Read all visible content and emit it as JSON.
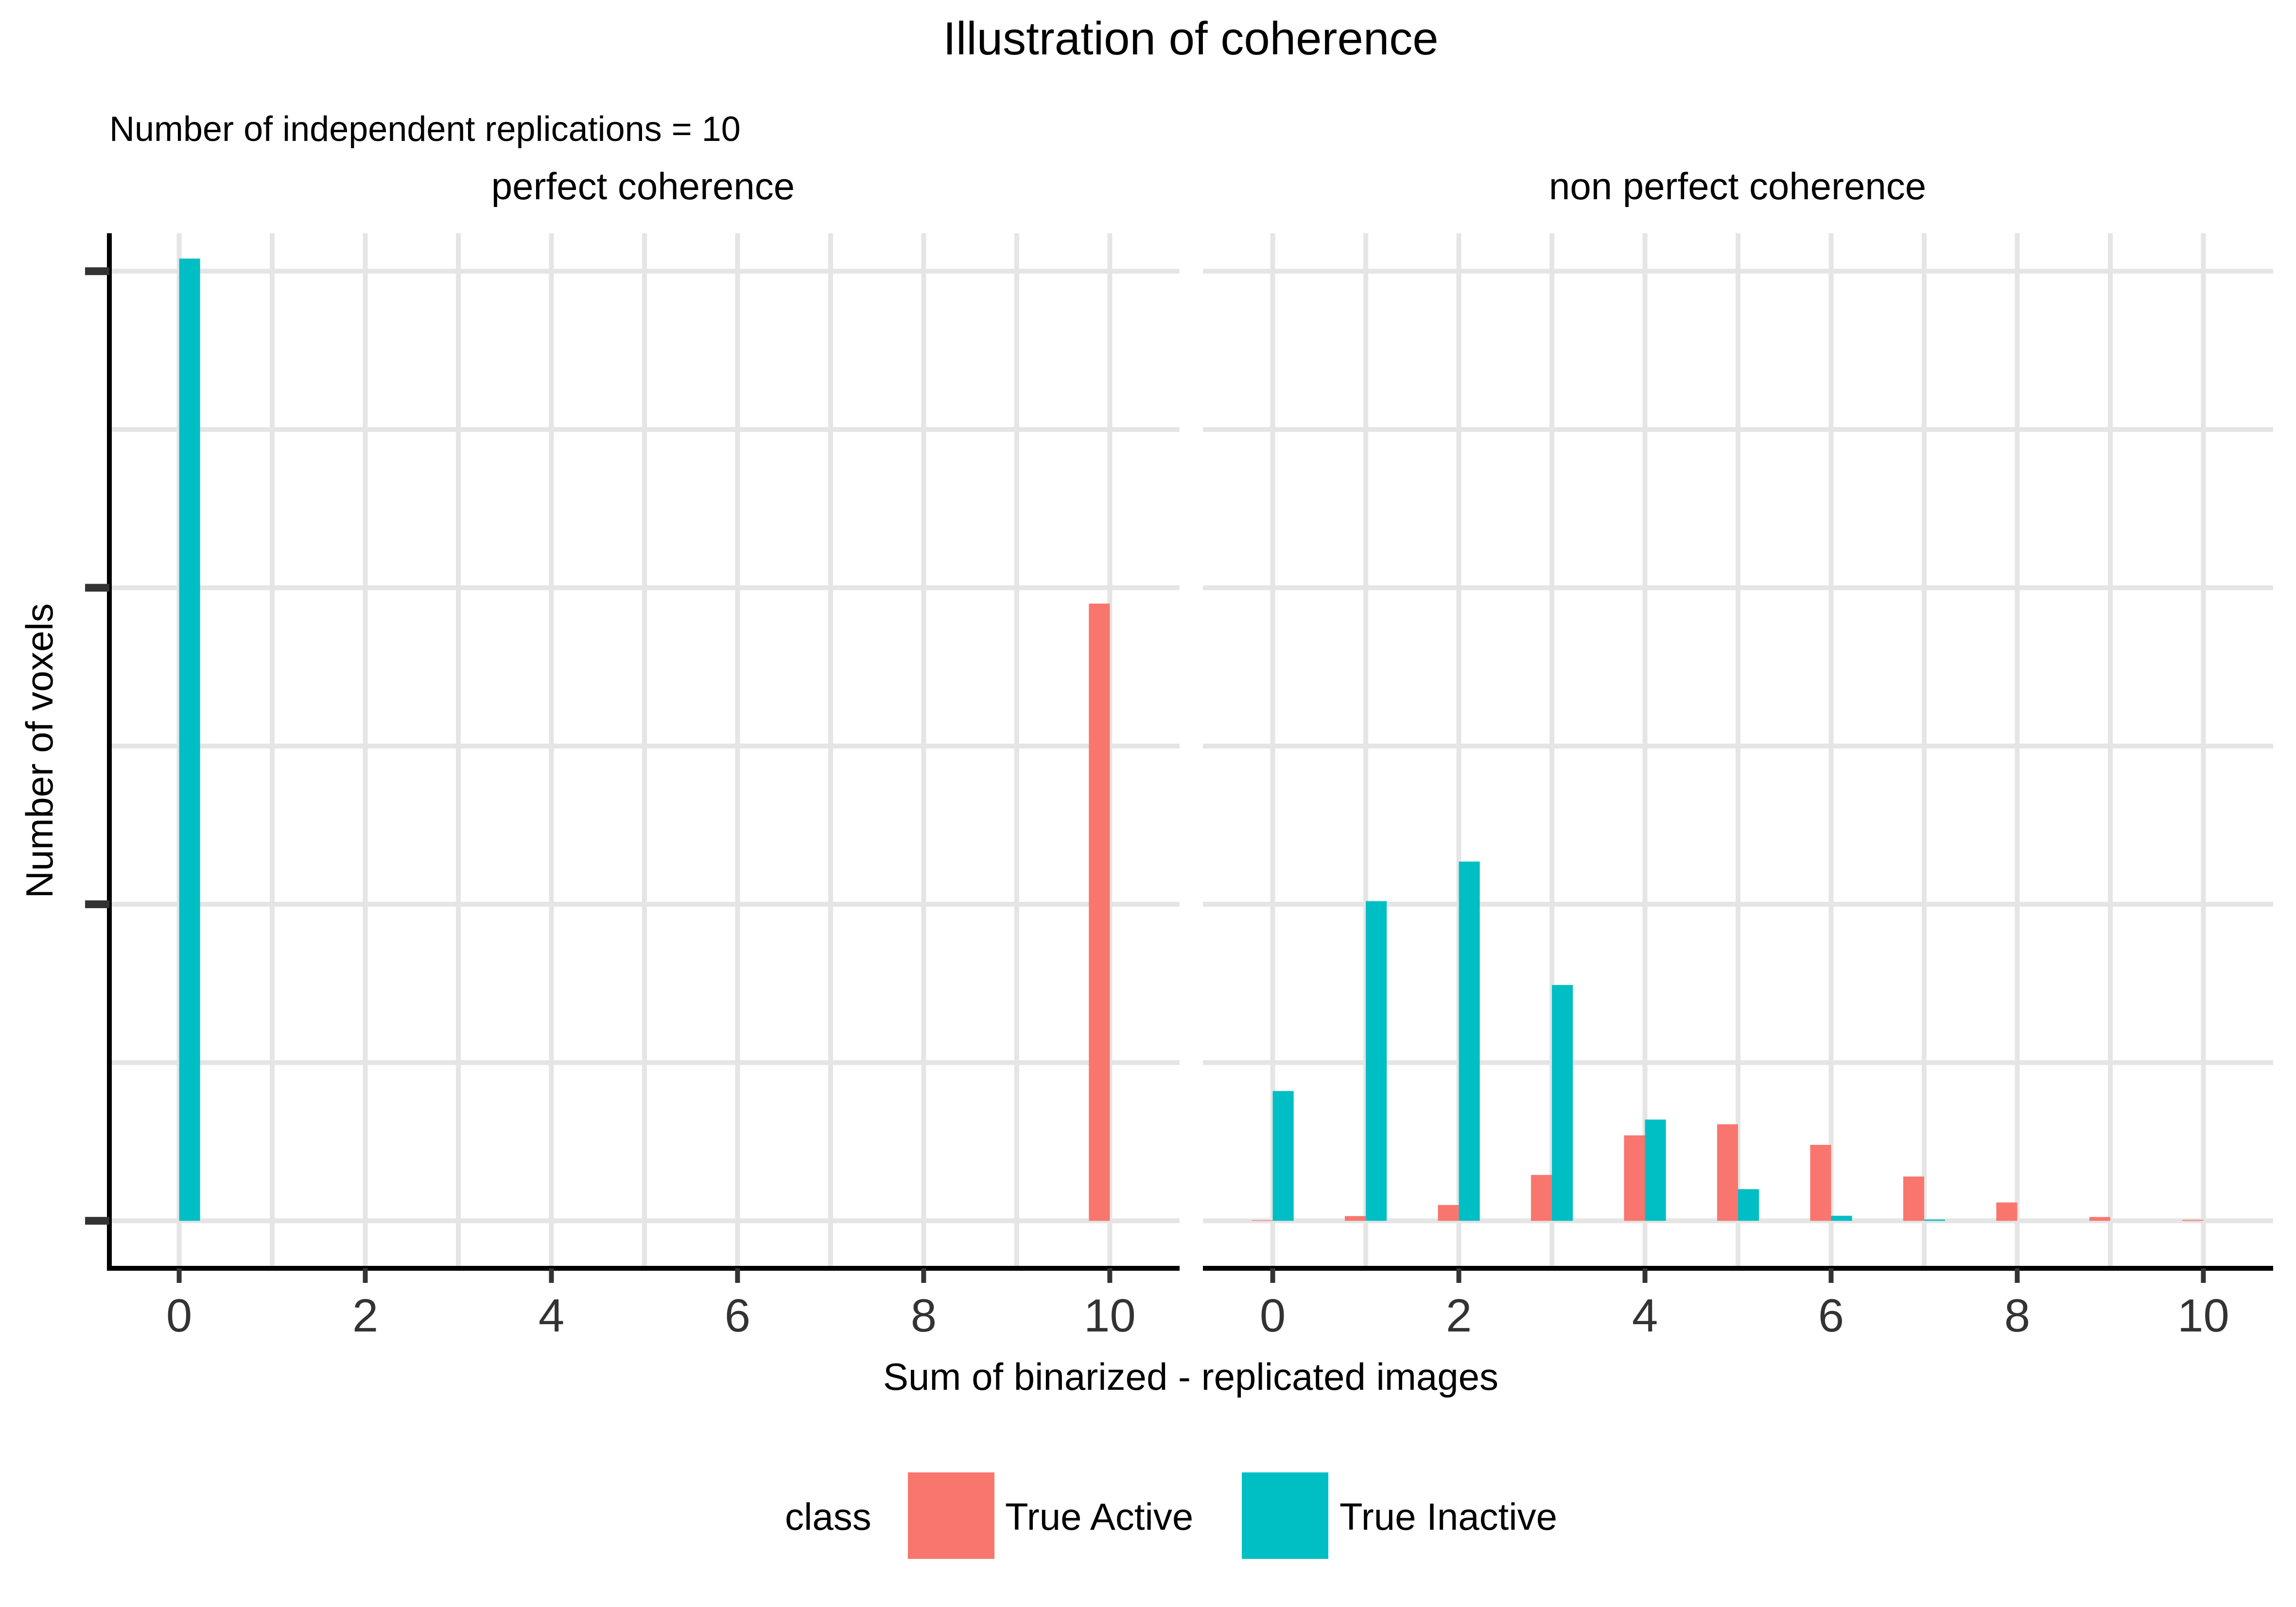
{
  "chart_data": {
    "type": "bar",
    "title": "Illustration of coherence",
    "subtitle": "Number of independent replications = 10",
    "xlabel": "Sum of binarized - replicated images",
    "ylabel": "Number of voxels",
    "xlim": [
      -0.75,
      10.75
    ],
    "ylim": [
      -0.15,
      3.12
    ],
    "x_ticks": [
      "0",
      "2",
      "4",
      "6",
      "8",
      "10"
    ],
    "x_tick_values": [
      0,
      2,
      4,
      6,
      8,
      10
    ],
    "y_tick_labels_visible": false,
    "grid": true,
    "legend": {
      "title": "class",
      "position": "bottom",
      "entries": [
        {
          "label": "True Active",
          "color": "#F8766D"
        },
        {
          "label": "True Inactive",
          "color": "#00BFC4"
        }
      ]
    },
    "panels": [
      {
        "name": "perfect coherence",
        "x": [
          0,
          1,
          2,
          3,
          4,
          5,
          6,
          7,
          8,
          9,
          10
        ],
        "series": [
          {
            "name": "True Active",
            "values": [
              0,
              0,
              0,
              0,
              0,
              0,
              0,
              0,
              0,
              0,
              1.95
            ]
          },
          {
            "name": "True Inactive",
            "values": [
              3.04,
              0,
              0,
              0,
              0,
              0,
              0,
              0,
              0,
              0,
              0
            ]
          }
        ]
      },
      {
        "name": "non perfect coherence",
        "x": [
          0,
          1,
          2,
          3,
          4,
          5,
          6,
          7,
          8,
          9,
          10
        ],
        "series": [
          {
            "name": "True Active",
            "values": [
              0.002,
              0.015,
              0.05,
              0.145,
              0.27,
              0.305,
              0.24,
              0.14,
              0.058,
              0.012,
              0.003
            ]
          },
          {
            "name": "True Inactive",
            "values": [
              0.41,
              1.01,
              1.135,
              0.745,
              0.32,
              0.1,
              0.016,
              0.004,
              0,
              0,
              0
            ]
          }
        ]
      }
    ]
  }
}
